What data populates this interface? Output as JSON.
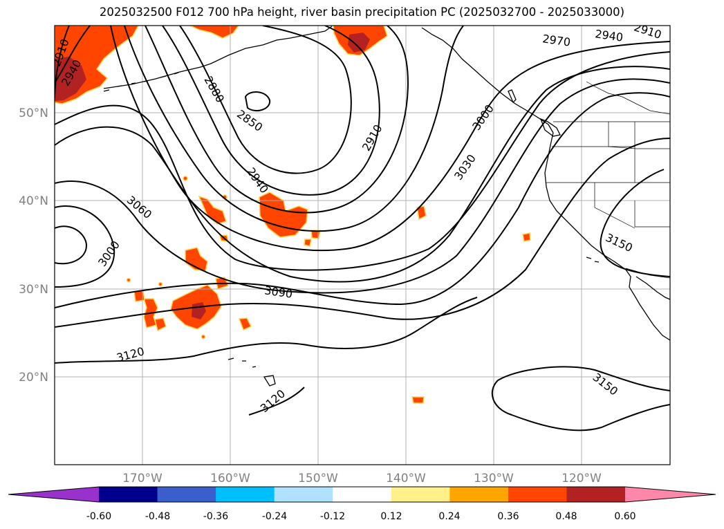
{
  "map": {
    "title": "2025032500 F012 700 hPa height, river basin precipitation PC (2025032700 - 2025033000)",
    "lat_labels": [
      "50°N",
      "40°N",
      "30°N",
      "20°N"
    ],
    "lon_labels": [
      "170°W",
      "160°W",
      "150°W",
      "140°W",
      "130°W",
      "120°W"
    ],
    "contour_labels": [
      "2910",
      "2940",
      "2970",
      "2940",
      "2910",
      "2880",
      "2850",
      "2910",
      "3000",
      "2940",
      "3030",
      "3060",
      "3000",
      "3150",
      "3090",
      "3120",
      "3120",
      "3150"
    ],
    "colors": {
      "graticule": "#b0b0b0",
      "contour": "#000000",
      "coast": "#000000",
      "precip_fill": "#ff4500",
      "precip_core": "#b22222",
      "precip_edge": "#ffa500",
      "precip_halo": "#ffe98a",
      "tick_label": "#808080"
    }
  },
  "colorbar": {
    "levels": [
      "-0.60",
      "-0.48",
      "-0.36",
      "-0.24",
      "-0.12",
      "0.12",
      "0.24",
      "0.36",
      "0.48",
      "0.60"
    ],
    "colors": [
      "#9932cc",
      "#00008b",
      "#3a5fcd",
      "#00bfff",
      "#b0e2ff",
      "#ffffff",
      "#fff08a",
      "#ffa500",
      "#ff4500",
      "#b22222",
      "#ff88aa"
    ]
  }
}
